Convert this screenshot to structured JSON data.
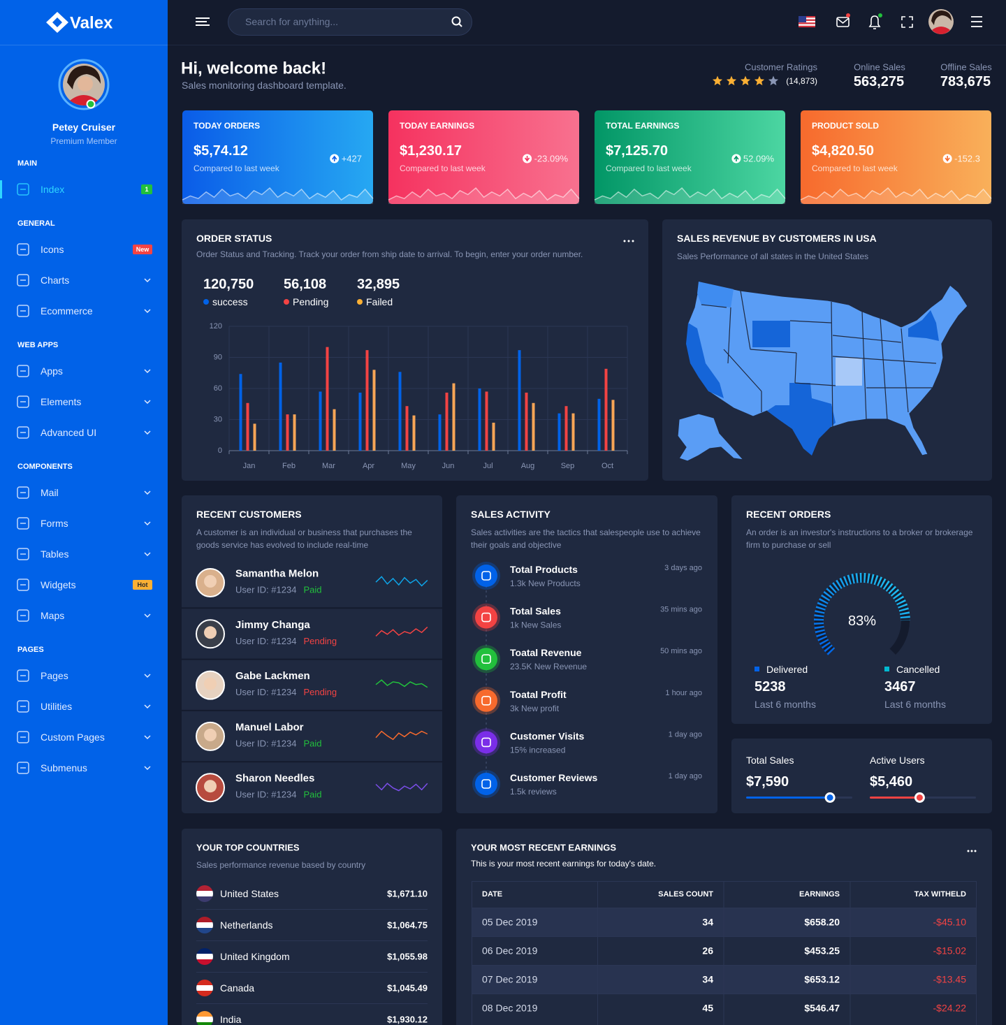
{
  "sidebar": {
    "brand": "Valex",
    "user": {
      "name": "Petey Cruiser",
      "role": "Premium Member"
    },
    "sections": [
      {
        "title": "MAIN",
        "items": [
          {
            "label": "Index",
            "badge": "1",
            "badge_color": "#22c03c"
          }
        ]
      },
      {
        "title": "GENERAL",
        "items": [
          {
            "label": "Icons",
            "badge": "New",
            "badge_color": "#f34343"
          },
          {
            "label": "Charts"
          },
          {
            "label": "Ecommerce"
          }
        ]
      },
      {
        "title": "WEB APPS",
        "items": [
          {
            "label": "Apps"
          },
          {
            "label": "Elements"
          },
          {
            "label": "Advanced UI"
          }
        ]
      },
      {
        "title": "COMPONENTS",
        "items": [
          {
            "label": "Mail"
          },
          {
            "label": "Forms"
          },
          {
            "label": "Tables"
          },
          {
            "label": "Widgets",
            "badge": "Hot",
            "badge_color": "#fbb034"
          },
          {
            "label": "Maps"
          }
        ]
      },
      {
        "title": "PAGES",
        "items": [
          {
            "label": "Pages"
          },
          {
            "label": "Utilities"
          },
          {
            "label": "Custom Pages"
          },
          {
            "label": "Submenus"
          }
        ]
      }
    ]
  },
  "header": {
    "search_placeholder": "Search for anything..."
  },
  "welcome": {
    "title": "Hi, welcome back!",
    "subtitle": "Sales monitoring dashboard template.",
    "ratings_label": "Customer Ratings",
    "rating": 4,
    "rating_max": 5,
    "ratings_count": "(14,873)",
    "online_label": "Online Sales",
    "online_value": "563,275",
    "offline_label": "Offline Sales",
    "offline_value": "783,675"
  },
  "stat_cards": [
    {
      "title": "TODAY ORDERS",
      "value": "$5,74.12",
      "change": "+427",
      "trend": "up",
      "note": "Compared to last week",
      "colors": [
        "#0a5ce8",
        "#26a8f2"
      ]
    },
    {
      "title": "TODAY EARNINGS",
      "value": "$1,230.17",
      "change": "-23.09%",
      "trend": "down",
      "note": "Compared to last week",
      "colors": [
        "#f5325f",
        "#f8718f"
      ]
    },
    {
      "title": "TOTAL EARNINGS",
      "value": "$7,125.70",
      "change": "52.09%",
      "trend": "up",
      "note": "Compared to last week",
      "colors": [
        "#029666",
        "#4cd6a2"
      ]
    },
    {
      "title": "PRODUCT SOLD",
      "value": "$4,820.50",
      "change": "-152.3",
      "trend": "down",
      "note": "Compared to last week",
      "colors": [
        "#f76a2d",
        "#f9b05a"
      ]
    }
  ],
  "order_status": {
    "title": "ORDER STATUS",
    "description": "Order Status and Tracking. Track your order from ship date to arrival. To begin, enter your order number.",
    "stats": [
      {
        "value": "120,750",
        "label": "success",
        "color": "#0162e8"
      },
      {
        "value": "56,108",
        "label": "Pending",
        "color": "#f34343"
      },
      {
        "value": "32,895",
        "label": "Failed",
        "color": "#fbb034"
      }
    ],
    "chart": {
      "type": "bar",
      "categories": [
        "Jan",
        "Feb",
        "Mar",
        "Apr",
        "May",
        "Jun",
        "Jul",
        "Aug",
        "Sep",
        "Oct"
      ],
      "series": [
        {
          "color": "#0162e8",
          "values": [
            74,
            85,
            57,
            56,
            76,
            35,
            60,
            97,
            36,
            50
          ]
        },
        {
          "color": "#f34343",
          "values": [
            46,
            35,
            100,
            97,
            43,
            56,
            57,
            56,
            43,
            79
          ]
        },
        {
          "color": "#f7a556",
          "values": [
            26,
            35,
            40,
            78,
            34,
            65,
            27,
            46,
            36,
            49
          ]
        }
      ],
      "ylim": [
        0,
        120
      ],
      "yticks": [
        0,
        30,
        60,
        90,
        120
      ],
      "grid": true
    }
  },
  "usa_map": {
    "title": "SALES REVENUE BY CUSTOMERS IN USA",
    "subtitle": "Sales Performance of all states in the United States"
  },
  "recent_customers": {
    "title": "RECENT CUSTOMERS",
    "description": [
      "A customer is an individual or business that purchases the",
      "goods service has evolved to include real-time"
    ],
    "customers": [
      {
        "name": "Samantha Melon",
        "id": "User ID: #1234",
        "status": "Paid",
        "status_color": "#22c03c",
        "spark_color": "#0ea5e9"
      },
      {
        "name": "Jimmy Changa",
        "id": "User ID: #1234",
        "status": "Pending",
        "status_color": "#f34343",
        "spark_color": "#f34343"
      },
      {
        "name": "Gabe Lackmen",
        "id": "User ID: #1234",
        "status": "Pending",
        "status_color": "#f34343",
        "spark_color": "#22c03c"
      },
      {
        "name": "Manuel Labor",
        "id": "User ID: #1234",
        "status": "Paid",
        "status_color": "#22c03c",
        "spark_color": "#f76a2d"
      },
      {
        "name": "Sharon Needles",
        "id": "User ID: #1234",
        "status": "Paid",
        "status_color": "#22c03c",
        "spark_color": "#7a4ee8"
      }
    ]
  },
  "sales_activity": {
    "title": "SALES ACTIVITY",
    "description": [
      "Sales activities are the tactics that salespeople use to achieve",
      "their goals and objective"
    ],
    "items": [
      {
        "title": "Total Products",
        "detail": "1.3k New Products",
        "time": "3 days ago",
        "color": "#0162e8"
      },
      {
        "title": "Total Sales",
        "detail": "1k New Sales",
        "time": "35 mins ago",
        "color": "#f34343"
      },
      {
        "title": "Toatal Revenue",
        "detail": "23.5K New Revenue",
        "time": "50 mins ago",
        "color": "#22c03c"
      },
      {
        "title": "Toatal Profit",
        "detail": "3k New profit",
        "time": "1 hour ago",
        "color": "#f76a2d"
      },
      {
        "title": "Customer Visits",
        "detail": "15% increased",
        "time": "1 day ago",
        "color": "#7a2ee8"
      },
      {
        "title": "Customer Reviews",
        "detail": "1.5k reviews",
        "time": "1 day ago",
        "color": "#0162e8"
      }
    ]
  },
  "recent_orders": {
    "title": "RECENT ORDERS",
    "description": [
      "An order is an investor's instructions to a broker or brokerage",
      "firm to purchase or sell"
    ],
    "gauge": {
      "value": 83,
      "label": "83%"
    },
    "delivered": {
      "label": "Delivered",
      "value": "5238",
      "period": "Last 6 months",
      "color": "#0162e8"
    },
    "cancelled": {
      "label": "Cancelled",
      "value": "3467",
      "period": "Last 6 months",
      "color": "#00b9d1"
    }
  },
  "totals": [
    {
      "label": "Total Sales",
      "value": "$7,590",
      "progress": 79,
      "color": "#0162e8"
    },
    {
      "label": "Active Users",
      "value": "$5,460",
      "progress": 47,
      "color": "#f34343"
    }
  ],
  "top_countries": {
    "title": "YOUR TOP COUNTRIES",
    "description": "Sales performance revenue based by country",
    "countries": [
      {
        "name": "United States",
        "amount": "$1,671.10"
      },
      {
        "name": "Netherlands",
        "amount": "$1,064.75"
      },
      {
        "name": "United Kingdom",
        "amount": "$1,055.98"
      },
      {
        "name": "Canada",
        "amount": "$1,045.49"
      },
      {
        "name": "India",
        "amount": "$1,930.12"
      }
    ]
  },
  "earnings": {
    "title": "YOUR MOST RECENT EARNINGS",
    "subtitle": "This is your most recent earnings for today's date.",
    "columns": [
      "DATE",
      "SALES COUNT",
      "EARNINGS",
      "TAX WITHELD"
    ],
    "rows": [
      [
        "05 Dec 2019",
        "34",
        "$658.20",
        "-$45.10"
      ],
      [
        "06 Dec 2019",
        "26",
        "$453.25",
        "-$15.02"
      ],
      [
        "07 Dec 2019",
        "34",
        "$653.12",
        "-$13.45"
      ],
      [
        "08 Dec 2019",
        "45",
        "$546.47",
        "-$24.22"
      ]
    ]
  }
}
